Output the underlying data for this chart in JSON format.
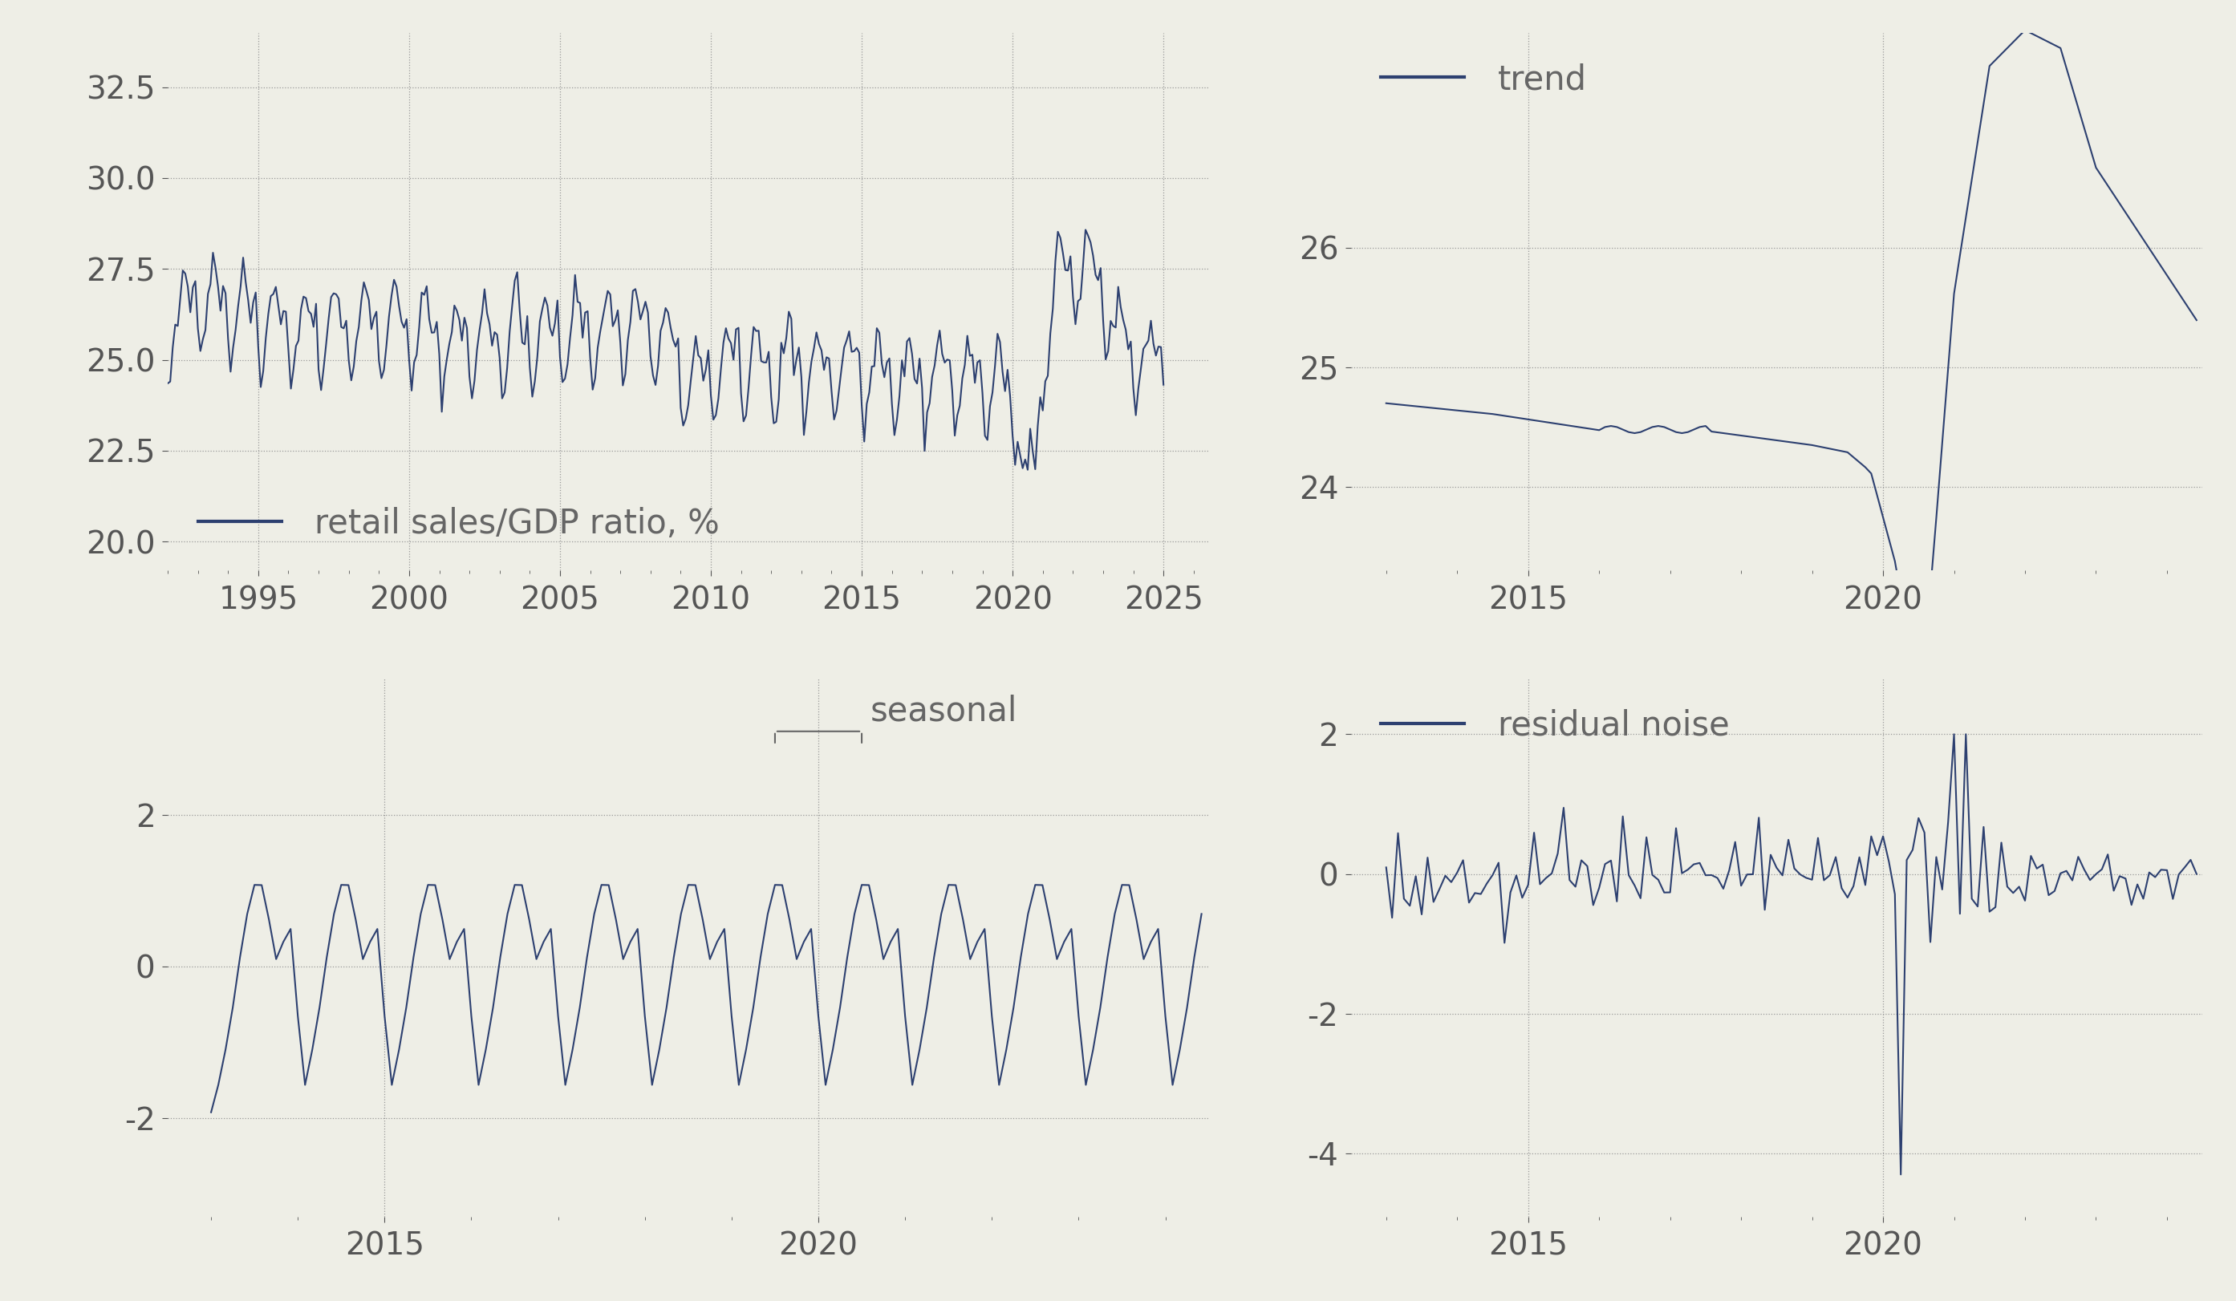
{
  "bg_color": "#eeeee6",
  "line_color": "#2d4070",
  "line_width": 1.5,
  "grid_color": "#999999",
  "tick_color": "#555555",
  "label_color": "#666666",
  "font_size_ticks": 28,
  "font_size_legend": 30,
  "top_left": {
    "ylabel_ticks": [
      20.0,
      22.5,
      25.0,
      27.5,
      30.0,
      32.5
    ],
    "xlim": [
      1992.0,
      2026.5
    ],
    "ylim": [
      19.2,
      34.0
    ],
    "xticks": [
      1995,
      2000,
      2005,
      2010,
      2015,
      2020,
      2025
    ],
    "legend_label": "retail sales/GDP ratio, %"
  },
  "top_right": {
    "ylabel_ticks": [
      24,
      25,
      26
    ],
    "xlim": [
      2012.5,
      2024.5
    ],
    "ylim": [
      23.3,
      27.8
    ],
    "xticks": [
      2015,
      2020
    ],
    "legend_label": "trend"
  },
  "bot_left": {
    "ylabel_ticks": [
      -2,
      0,
      2
    ],
    "xlim": [
      2012.5,
      2024.5
    ],
    "ylim": [
      -3.3,
      3.8
    ],
    "xticks": [
      2015,
      2020
    ],
    "legend_label": "seasonal"
  },
  "bot_right": {
    "ylabel_ticks": [
      -4,
      -2,
      0,
      2
    ],
    "xlim": [
      2012.5,
      2024.5
    ],
    "ylim": [
      -4.9,
      2.8
    ],
    "xticks": [
      2015,
      2020
    ],
    "legend_label": "residual noise"
  }
}
